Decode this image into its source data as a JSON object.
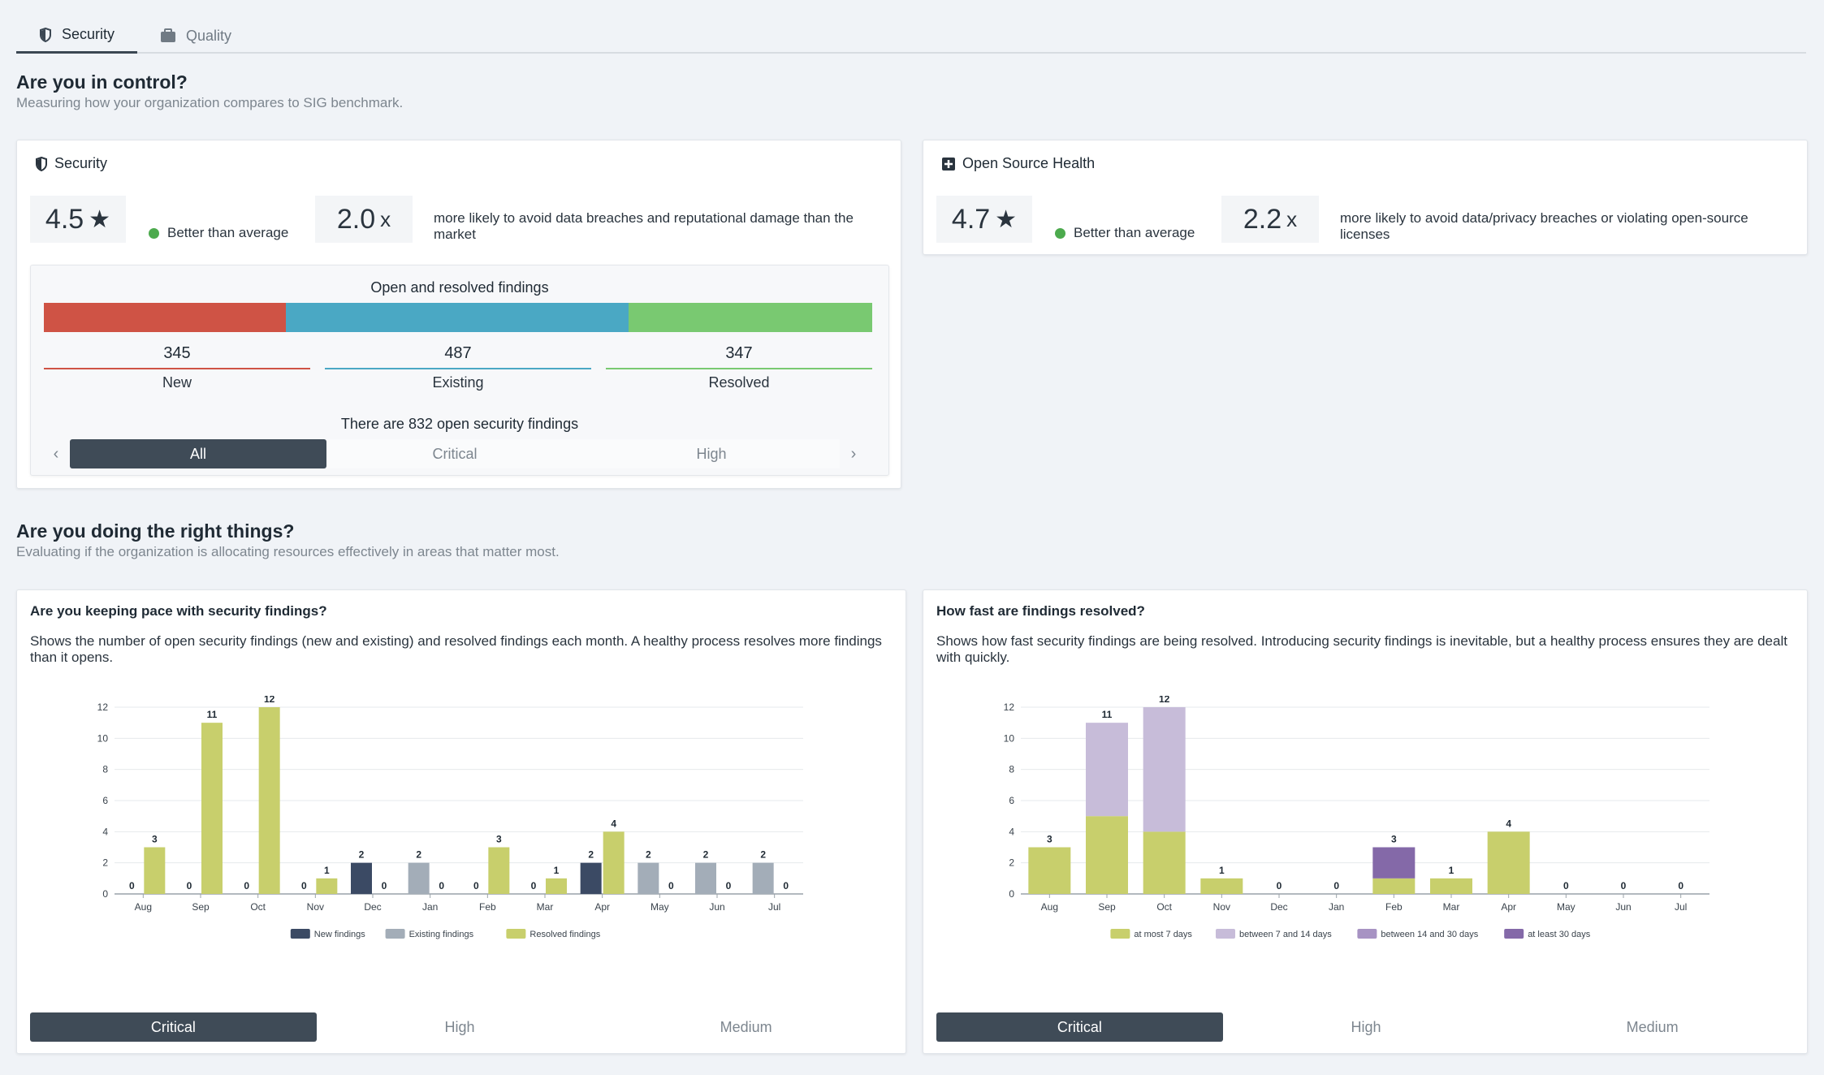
{
  "tabs": [
    {
      "label": "Security",
      "icon": "shield-icon"
    },
    {
      "label": "Quality",
      "icon": "briefcase-icon"
    }
  ],
  "section1": {
    "title": "Are you in control?",
    "subtitle": "Measuring how your organization compares to SIG benchmark."
  },
  "security_card": {
    "title": "Security",
    "rating": "4.5",
    "star": "★",
    "status": "Better than average",
    "multiplier": "2.0",
    "unit": "x",
    "description": "more likely to avoid data breaches and reputational damage than the market"
  },
  "oss_card": {
    "title": "Open Source Health",
    "rating": "4.7",
    "star": "★",
    "status": "Better than average",
    "multiplier": "2.2",
    "unit": "x",
    "description": "more likely to avoid data/privacy breaches or violating open-source licenses"
  },
  "findings": {
    "title": "Open and resolved findings",
    "new": {
      "value": 345,
      "label": "New",
      "color": "#cf5345"
    },
    "existing": {
      "value": 487,
      "label": "Existing",
      "color": "#4aa8c4"
    },
    "resolved": {
      "value": 347,
      "label": "Resolved",
      "color": "#79c971"
    },
    "open_text": "There are 832 open security findings",
    "chev_left": "‹",
    "chev_right": "›",
    "filters": [
      "All",
      "Critical",
      "High"
    ],
    "selected_filter": "All"
  },
  "section2": {
    "title": "Are you doing the right things?",
    "subtitle": "Evaluating if the organization is allocating resources effectively in areas that matter most."
  },
  "pace_card": {
    "title": "Are you keeping pace with security findings?",
    "description": "Shows the number of open security findings (new and existing) and resolved findings each month. A healthy process resolves more findings than it opens.",
    "buttons": [
      "Critical",
      "High",
      "Medium"
    ],
    "selected": "Critical"
  },
  "speed_card": {
    "title": "How fast are findings resolved?",
    "description": "Shows how fast security findings are being resolved. Introducing security findings is inevitable, but a healthy process ensures they are dealt with quickly.",
    "buttons": [
      "Critical",
      "High",
      "Medium"
    ],
    "selected": "Critical"
  },
  "chart_data": [
    {
      "type": "bar",
      "categories": [
        "Aug",
        "Sep",
        "Oct",
        "Nov",
        "Dec",
        "Jan",
        "Feb",
        "Mar",
        "Apr",
        "May",
        "Jun",
        "Jul"
      ],
      "series": [
        {
          "name": "New findings",
          "color": "#3b4a64",
          "values": [
            0,
            0,
            0,
            0,
            2,
            0,
            0,
            0,
            2,
            0,
            0,
            0
          ]
        },
        {
          "name": "Existing findings",
          "color": "#a3adb8",
          "values": [
            0,
            0,
            0,
            0,
            0,
            2,
            0,
            0,
            0,
            2,
            2,
            2
          ]
        },
        {
          "name": "Resolved findings",
          "color": "#c8cf6c",
          "values": [
            3,
            11,
            12,
            1,
            0,
            0,
            3,
            1,
            4,
            0,
            0,
            0
          ]
        }
      ],
      "mode": "grouped",
      "ylim": [
        0,
        12
      ],
      "yticks": [
        0,
        2,
        4,
        6,
        8,
        10,
        12
      ],
      "grid": true,
      "legend": "bottom"
    },
    {
      "type": "bar",
      "categories": [
        "Aug",
        "Sep",
        "Oct",
        "Nov",
        "Dec",
        "Jan",
        "Feb",
        "Mar",
        "Apr",
        "May",
        "Jun",
        "Jul"
      ],
      "series": [
        {
          "name": "at most 7 days",
          "color": "#c8cf6c",
          "values": [
            3,
            5,
            4,
            1,
            0,
            0,
            1,
            1,
            4,
            0,
            0,
            0
          ]
        },
        {
          "name": "between 7 and 14 days",
          "color": "#c7bcd9",
          "values": [
            0,
            6,
            8,
            0,
            0,
            0,
            0,
            0,
            0,
            0,
            0,
            0
          ]
        },
        {
          "name": "between 14 and 30 days",
          "color": "#a793c3",
          "values": [
            0,
            0,
            0,
            0,
            0,
            0,
            0,
            0,
            0,
            0,
            0,
            0
          ]
        },
        {
          "name": "at least 30 days",
          "color": "#8469a8",
          "values": [
            0,
            0,
            0,
            0,
            0,
            0,
            2,
            0,
            0,
            0,
            0,
            0
          ]
        }
      ],
      "totals": [
        3,
        11,
        12,
        1,
        0,
        0,
        3,
        1,
        4,
        0,
        0,
        0
      ],
      "mode": "stacked",
      "ylim": [
        0,
        12
      ],
      "yticks": [
        0,
        2,
        4,
        6,
        8,
        10,
        12
      ],
      "grid": true,
      "legend": "bottom"
    }
  ]
}
